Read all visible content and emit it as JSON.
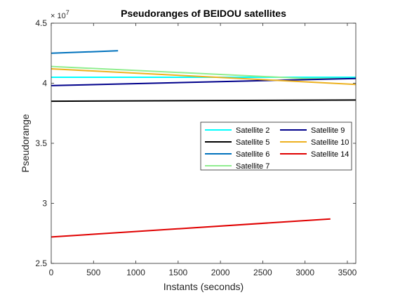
{
  "chart_data": {
    "type": "line",
    "title": "Pseudoranges of BEIDOU satellites",
    "xlabel": "Instants (seconds)",
    "ylabel": "Pseudorange",
    "y_exponent_label": "× 10",
    "y_exponent": "7",
    "xlim": [
      0,
      3600
    ],
    "ylim": [
      2.5,
      4.5
    ],
    "y_scale_factor": 10000000,
    "x_ticks": [
      0,
      500,
      1000,
      1500,
      2000,
      2500,
      3000,
      3500
    ],
    "x_tick_labels": [
      "0",
      "500",
      "1000",
      "1500",
      "2000",
      "2500",
      "3000",
      "3500"
    ],
    "y_ticks": [
      2.5,
      3,
      3.5,
      4,
      4.5
    ],
    "y_tick_labels": [
      "2.5",
      "3",
      "3.5",
      "4",
      "4.5"
    ],
    "grid": false,
    "legend_placement": "center-right",
    "legend_columns": 2,
    "series": [
      {
        "name": "Satellite 2",
        "color": "#00ffff",
        "x": [
          0,
          3600
        ],
        "y": [
          4.05,
          4.05
        ]
      },
      {
        "name": "Satellite 5",
        "color": "#000000",
        "x": [
          0,
          3600
        ],
        "y": [
          3.85,
          3.86
        ]
      },
      {
        "name": "Satellite 6",
        "color": "#0072bd",
        "x": [
          0,
          790
        ],
        "y": [
          4.25,
          4.27
        ]
      },
      {
        "name": "Satellite 7",
        "color": "#90ee90",
        "x": [
          0,
          3000,
          3600
        ],
        "y": [
          4.14,
          4.04,
          4.04
        ]
      },
      {
        "name": "Satellite 9",
        "color": "#00008b",
        "x": [
          0,
          3600
        ],
        "y": [
          3.98,
          4.04
        ]
      },
      {
        "name": "Satellite 10",
        "color": "#edb120",
        "x": [
          0,
          3600
        ],
        "y": [
          4.12,
          3.99
        ]
      },
      {
        "name": "Satellite 14",
        "color": "#e00000",
        "x": [
          0,
          3300
        ],
        "y": [
          2.72,
          2.87
        ]
      }
    ]
  }
}
